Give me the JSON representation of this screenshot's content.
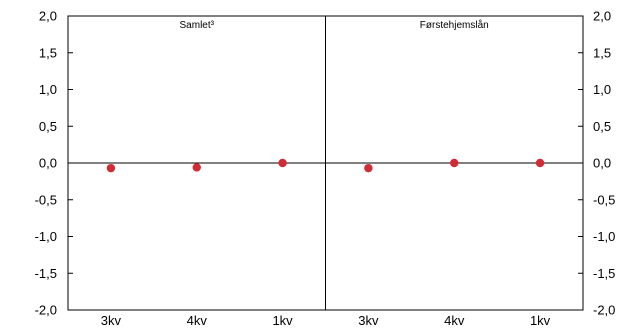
{
  "chart_data": {
    "type": "scatter",
    "title": "",
    "xlabel": "",
    "ylabel": "",
    "ylim": [
      -2,
      2
    ],
    "yticks": [
      "2,0",
      "1,5",
      "1,0",
      "0,5",
      "0,0",
      "-0,5",
      "-1,0",
      "-1,5",
      "-2,0"
    ],
    "ytick_values": [
      2,
      1.5,
      1,
      0.5,
      0,
      -0.5,
      -1,
      -1.5,
      -2
    ],
    "grid": false,
    "marker_color": "#d12b35",
    "panels": [
      {
        "label": "Samlet³",
        "categories": [
          "3kv",
          "4kv",
          "1kv"
        ],
        "values": [
          -0.07,
          -0.06,
          0.0
        ]
      },
      {
        "label": "Førstehjemslån",
        "categories": [
          "3kv",
          "4kv",
          "1kv"
        ],
        "values": [
          -0.07,
          0.0,
          0.0
        ]
      }
    ]
  }
}
